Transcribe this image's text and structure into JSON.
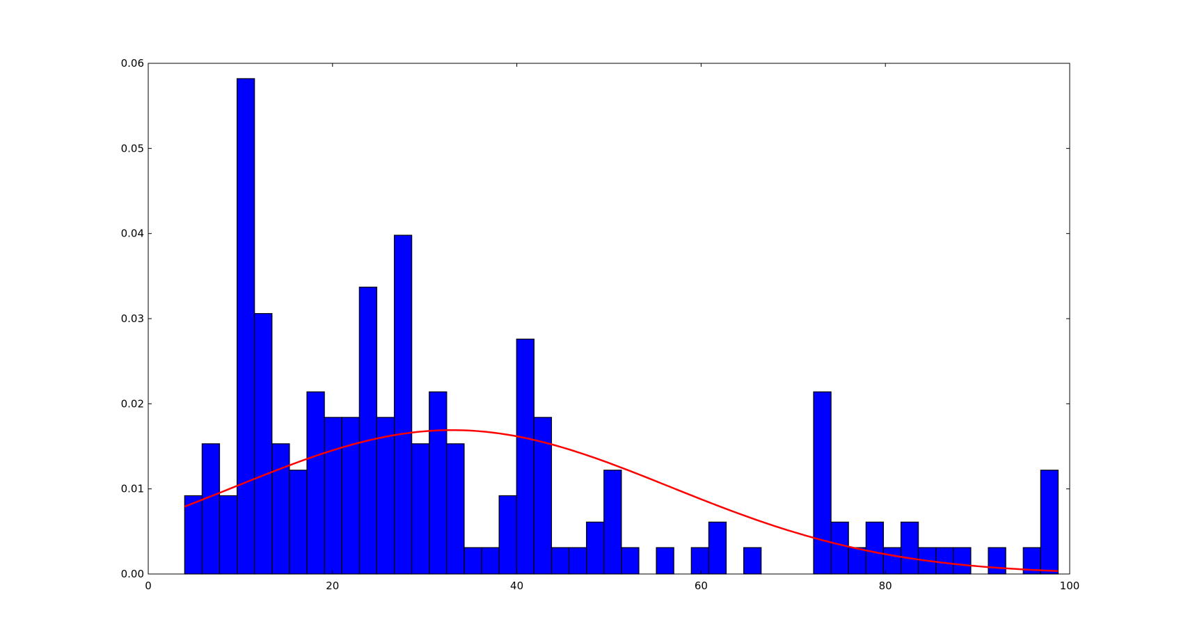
{
  "chart_data": {
    "type": "bar",
    "title": "",
    "xlabel": "",
    "ylabel": "",
    "xlim": [
      0,
      100
    ],
    "ylim": [
      0,
      0.06
    ],
    "grid": false,
    "x_ticks": [
      "0",
      "20",
      "40",
      "60",
      "80",
      "100"
    ],
    "x_tick_values": [
      0,
      20,
      40,
      60,
      80,
      100
    ],
    "y_ticks": [
      "0.00",
      "0.01",
      "0.02",
      "0.03",
      "0.04",
      "0.05",
      "0.06"
    ],
    "y_tick_values": [
      0,
      0.01,
      0.02,
      0.03,
      0.04,
      0.05,
      0.06
    ],
    "histogram": {
      "bin_start": 3.95,
      "bin_width": 1.896,
      "density": [
        0.0092,
        0.0153,
        0.0092,
        0.0582,
        0.0306,
        0.0153,
        0.0122,
        0.0214,
        0.0184,
        0.0184,
        0.0337,
        0.0184,
        0.0398,
        0.0153,
        0.0214,
        0.0153,
        0.0031,
        0.0031,
        0.0092,
        0.0276,
        0.0184,
        0.0031,
        0.0031,
        0.0061,
        0.0122,
        0.0031,
        0,
        0.0031,
        0,
        0.0031,
        0.0061,
        0,
        0.0031,
        0,
        0,
        0,
        0.0214,
        0.0061,
        0.0031,
        0.0061,
        0.0031,
        0.0061,
        0.0031,
        0.0031,
        0.0031,
        0,
        0.0031,
        0,
        0.0031,
        0.0122
      ],
      "color": "#0000ff",
      "edge_color": "#000000"
    },
    "fit_curve": {
      "type": "normal-pdf",
      "mu": 33.0,
      "sigma": 23.6,
      "x_range": [
        3.95,
        98.75
      ],
      "color": "#ff0000"
    }
  }
}
